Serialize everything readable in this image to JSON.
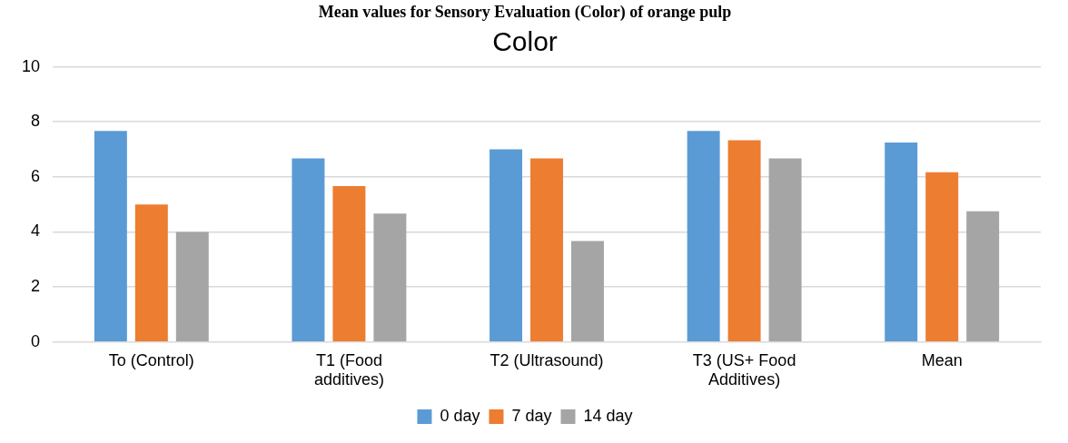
{
  "chart_data": {
    "type": "bar",
    "title": "Mean values for Sensory Evaluation (Color) of orange pulp",
    "subtitle": "Color",
    "categories": [
      "To (Control)",
      "T1 (Food additives)",
      "T2 (Ultrasound)",
      "T3 (US+ Food Additives)",
      "Mean"
    ],
    "series": [
      {
        "name": "0 day",
        "color": "#5b9bd5",
        "values": [
          7.67,
          6.67,
          7,
          7.67,
          7.25
        ]
      },
      {
        "name": "7 day",
        "color": "#ed7d31",
        "values": [
          5,
          5.67,
          6.67,
          7.33,
          6.17
        ]
      },
      {
        "name": "14 day",
        "color": "#a5a5a5",
        "values": [
          4,
          4.67,
          3.67,
          6.67,
          4.75
        ]
      }
    ],
    "ylim": [
      0,
      10
    ],
    "yticks": [
      0,
      2,
      4,
      6,
      8,
      10
    ],
    "grid": "y",
    "legend": "bottom"
  }
}
